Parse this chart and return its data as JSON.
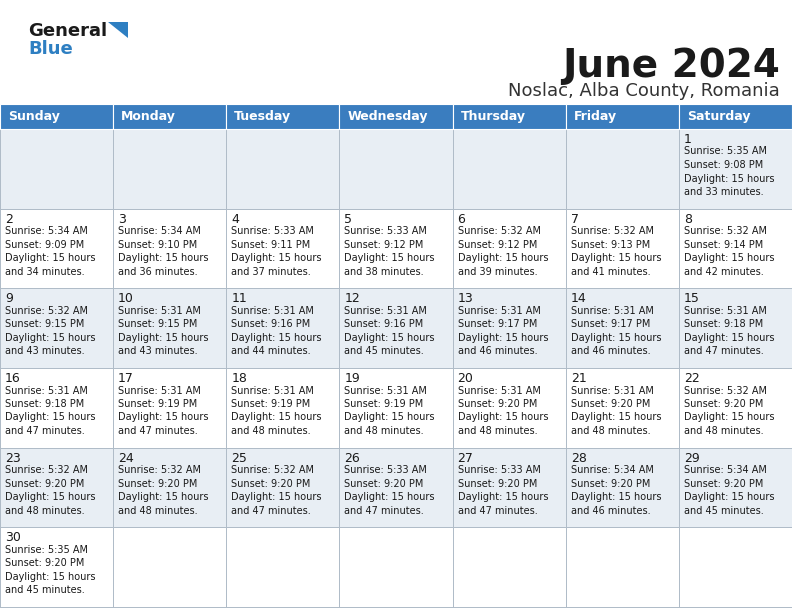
{
  "title": "June 2024",
  "subtitle": "Noslac, Alba County, Romania",
  "header_color": "#3a7dbf",
  "header_text_color": "#ffffff",
  "cell_bg_light": "#e8eef4",
  "cell_bg_white": "#ffffff",
  "border_color": "#b0bcc8",
  "text_color": "#1a1a1a",
  "logo_blue": "#2e7fc2",
  "day_names": [
    "Sunday",
    "Monday",
    "Tuesday",
    "Wednesday",
    "Thursday",
    "Friday",
    "Saturday"
  ],
  "days_data": [
    {
      "day": 1,
      "col": 6,
      "row": 0,
      "sunrise": "5:35 AM",
      "sunset": "9:08 PM",
      "daylight_h": "15 hours",
      "daylight_m": "and 33 minutes."
    },
    {
      "day": 2,
      "col": 0,
      "row": 1,
      "sunrise": "5:34 AM",
      "sunset": "9:09 PM",
      "daylight_h": "15 hours",
      "daylight_m": "and 34 minutes."
    },
    {
      "day": 3,
      "col": 1,
      "row": 1,
      "sunrise": "5:34 AM",
      "sunset": "9:10 PM",
      "daylight_h": "15 hours",
      "daylight_m": "and 36 minutes."
    },
    {
      "day": 4,
      "col": 2,
      "row": 1,
      "sunrise": "5:33 AM",
      "sunset": "9:11 PM",
      "daylight_h": "15 hours",
      "daylight_m": "and 37 minutes."
    },
    {
      "day": 5,
      "col": 3,
      "row": 1,
      "sunrise": "5:33 AM",
      "sunset": "9:12 PM",
      "daylight_h": "15 hours",
      "daylight_m": "and 38 minutes."
    },
    {
      "day": 6,
      "col": 4,
      "row": 1,
      "sunrise": "5:32 AM",
      "sunset": "9:12 PM",
      "daylight_h": "15 hours",
      "daylight_m": "and 39 minutes."
    },
    {
      "day": 7,
      "col": 5,
      "row": 1,
      "sunrise": "5:32 AM",
      "sunset": "9:13 PM",
      "daylight_h": "15 hours",
      "daylight_m": "and 41 minutes."
    },
    {
      "day": 8,
      "col": 6,
      "row": 1,
      "sunrise": "5:32 AM",
      "sunset": "9:14 PM",
      "daylight_h": "15 hours",
      "daylight_m": "and 42 minutes."
    },
    {
      "day": 9,
      "col": 0,
      "row": 2,
      "sunrise": "5:32 AM",
      "sunset": "9:15 PM",
      "daylight_h": "15 hours",
      "daylight_m": "and 43 minutes."
    },
    {
      "day": 10,
      "col": 1,
      "row": 2,
      "sunrise": "5:31 AM",
      "sunset": "9:15 PM",
      "daylight_h": "15 hours",
      "daylight_m": "and 43 minutes."
    },
    {
      "day": 11,
      "col": 2,
      "row": 2,
      "sunrise": "5:31 AM",
      "sunset": "9:16 PM",
      "daylight_h": "15 hours",
      "daylight_m": "and 44 minutes."
    },
    {
      "day": 12,
      "col": 3,
      "row": 2,
      "sunrise": "5:31 AM",
      "sunset": "9:16 PM",
      "daylight_h": "15 hours",
      "daylight_m": "and 45 minutes."
    },
    {
      "day": 13,
      "col": 4,
      "row": 2,
      "sunrise": "5:31 AM",
      "sunset": "9:17 PM",
      "daylight_h": "15 hours",
      "daylight_m": "and 46 minutes."
    },
    {
      "day": 14,
      "col": 5,
      "row": 2,
      "sunrise": "5:31 AM",
      "sunset": "9:17 PM",
      "daylight_h": "15 hours",
      "daylight_m": "and 46 minutes."
    },
    {
      "day": 15,
      "col": 6,
      "row": 2,
      "sunrise": "5:31 AM",
      "sunset": "9:18 PM",
      "daylight_h": "15 hours",
      "daylight_m": "and 47 minutes."
    },
    {
      "day": 16,
      "col": 0,
      "row": 3,
      "sunrise": "5:31 AM",
      "sunset": "9:18 PM",
      "daylight_h": "15 hours",
      "daylight_m": "and 47 minutes."
    },
    {
      "day": 17,
      "col": 1,
      "row": 3,
      "sunrise": "5:31 AM",
      "sunset": "9:19 PM",
      "daylight_h": "15 hours",
      "daylight_m": "and 47 minutes."
    },
    {
      "day": 18,
      "col": 2,
      "row": 3,
      "sunrise": "5:31 AM",
      "sunset": "9:19 PM",
      "daylight_h": "15 hours",
      "daylight_m": "and 48 minutes."
    },
    {
      "day": 19,
      "col": 3,
      "row": 3,
      "sunrise": "5:31 AM",
      "sunset": "9:19 PM",
      "daylight_h": "15 hours",
      "daylight_m": "and 48 minutes."
    },
    {
      "day": 20,
      "col": 4,
      "row": 3,
      "sunrise": "5:31 AM",
      "sunset": "9:20 PM",
      "daylight_h": "15 hours",
      "daylight_m": "and 48 minutes."
    },
    {
      "day": 21,
      "col": 5,
      "row": 3,
      "sunrise": "5:31 AM",
      "sunset": "9:20 PM",
      "daylight_h": "15 hours",
      "daylight_m": "and 48 minutes."
    },
    {
      "day": 22,
      "col": 6,
      "row": 3,
      "sunrise": "5:32 AM",
      "sunset": "9:20 PM",
      "daylight_h": "15 hours",
      "daylight_m": "and 48 minutes."
    },
    {
      "day": 23,
      "col": 0,
      "row": 4,
      "sunrise": "5:32 AM",
      "sunset": "9:20 PM",
      "daylight_h": "15 hours",
      "daylight_m": "and 48 minutes."
    },
    {
      "day": 24,
      "col": 1,
      "row": 4,
      "sunrise": "5:32 AM",
      "sunset": "9:20 PM",
      "daylight_h": "15 hours",
      "daylight_m": "and 48 minutes."
    },
    {
      "day": 25,
      "col": 2,
      "row": 4,
      "sunrise": "5:32 AM",
      "sunset": "9:20 PM",
      "daylight_h": "15 hours",
      "daylight_m": "and 47 minutes."
    },
    {
      "day": 26,
      "col": 3,
      "row": 4,
      "sunrise": "5:33 AM",
      "sunset": "9:20 PM",
      "daylight_h": "15 hours",
      "daylight_m": "and 47 minutes."
    },
    {
      "day": 27,
      "col": 4,
      "row": 4,
      "sunrise": "5:33 AM",
      "sunset": "9:20 PM",
      "daylight_h": "15 hours",
      "daylight_m": "and 47 minutes."
    },
    {
      "day": 28,
      "col": 5,
      "row": 4,
      "sunrise": "5:34 AM",
      "sunset": "9:20 PM",
      "daylight_h": "15 hours",
      "daylight_m": "and 46 minutes."
    },
    {
      "day": 29,
      "col": 6,
      "row": 4,
      "sunrise": "5:34 AM",
      "sunset": "9:20 PM",
      "daylight_h": "15 hours",
      "daylight_m": "and 45 minutes."
    },
    {
      "day": 30,
      "col": 0,
      "row": 5,
      "sunrise": "5:35 AM",
      "sunset": "9:20 PM",
      "daylight_h": "15 hours",
      "daylight_m": "and 45 minutes."
    }
  ]
}
